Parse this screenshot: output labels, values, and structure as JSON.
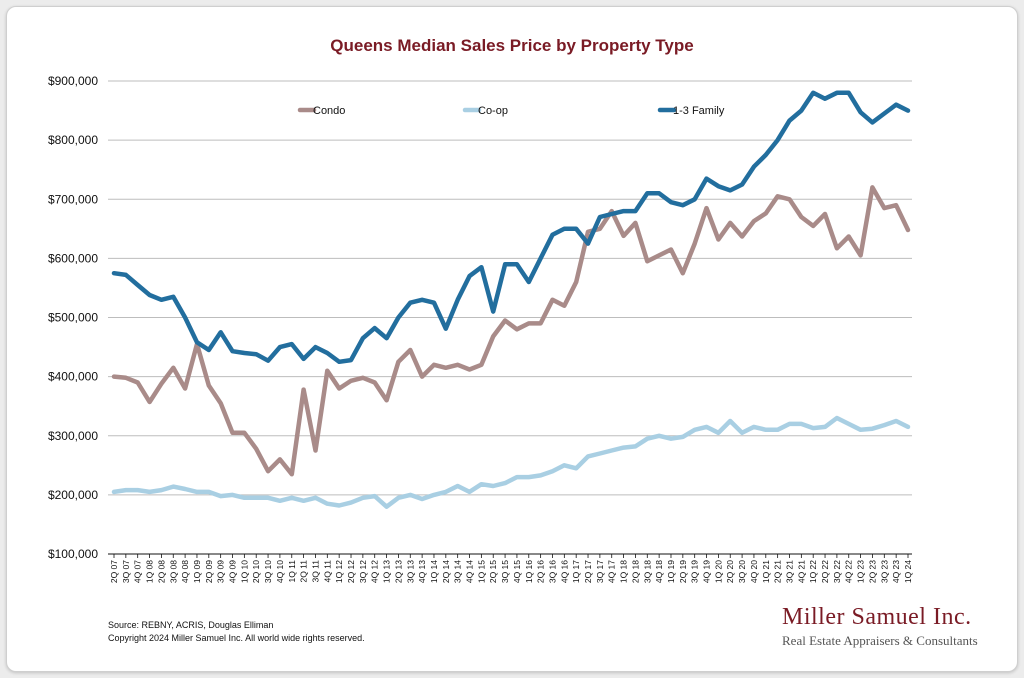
{
  "colors": {
    "title": "#7a1b25",
    "axis": "#111111",
    "grid": "#bdbdbd",
    "logo_name": "#7a1b25",
    "logo_tag": "#555555"
  },
  "footer": {
    "source": "Source: REBNY, ACRIS, Douglas Elliman",
    "copyright": "Copyright 2024 Miller Samuel Inc.  All world wide rights reserved."
  },
  "logo": {
    "name": "Miller Samuel Inc.",
    "tagline": "Real Estate Appraisers & Consultants"
  },
  "chart_data": {
    "type": "line",
    "title": "Queens Median Sales Price by Property Type",
    "xlabel": "",
    "ylabel": "",
    "ylim": [
      100000,
      900000
    ],
    "yticks": [
      100000,
      200000,
      300000,
      400000,
      500000,
      600000,
      700000,
      800000,
      900000
    ],
    "ytick_labels": [
      "$100,000",
      "$200,000",
      "$300,000",
      "$400,000",
      "$500,000",
      "$600,000",
      "$700,000",
      "$800,000",
      "$900,000"
    ],
    "grid": true,
    "legend_placement": "top",
    "categories": [
      "2Q 07",
      "3Q 07",
      "4Q 07",
      "1Q 08",
      "2Q 08",
      "3Q 08",
      "4Q 08",
      "1Q 09",
      "2Q 09",
      "3Q 09",
      "4Q 09",
      "1Q 10",
      "2Q 10",
      "3Q 10",
      "4Q 10",
      "1Q 11",
      "2Q 11",
      "3Q 11",
      "4Q 11",
      "1Q 12",
      "2Q 12",
      "3Q 12",
      "4Q 12",
      "1Q 13",
      "2Q 13",
      "3Q 13",
      "4Q 13",
      "1Q 14",
      "2Q 14",
      "3Q 14",
      "4Q 14",
      "1Q 15",
      "2Q 15",
      "3Q 15",
      "4Q 15",
      "1Q 16",
      "2Q 16",
      "3Q 16",
      "4Q 16",
      "1Q 17",
      "2Q 17",
      "3Q 17",
      "4Q 17",
      "1Q 18",
      "2Q 18",
      "3Q 18",
      "4Q 18",
      "1Q 19",
      "2Q 19",
      "3Q 19",
      "4Q 19",
      "1Q 20",
      "2Q 20",
      "3Q 20",
      "4Q 20",
      "1Q 21",
      "2Q 21",
      "3Q 21",
      "4Q 21",
      "1Q 22",
      "2Q 22",
      "3Q 22",
      "4Q 22",
      "1Q 23",
      "2Q 23",
      "3Q 23",
      "4Q 23",
      "1Q 24"
    ],
    "series": [
      {
        "name": "Condo",
        "color": "#a98b89",
        "values": [
          400000,
          398000,
          390000,
          357000,
          388000,
          415000,
          380000,
          455000,
          385000,
          355000,
          305000,
          305000,
          278000,
          240000,
          260000,
          235000,
          378000,
          275000,
          410000,
          380000,
          393000,
          398000,
          390000,
          360000,
          425000,
          445000,
          400000,
          420000,
          415000,
          420000,
          412000,
          420000,
          468000,
          495000,
          480000,
          490000,
          490000,
          530000,
          520000,
          560000,
          645000,
          650000,
          680000,
          638000,
          660000,
          595000,
          605000,
          615000,
          575000,
          625000,
          685000,
          632000,
          660000,
          637000,
          663000,
          676000,
          705000,
          700000,
          670000,
          655000,
          675000,
          617000,
          637000,
          605000,
          720000,
          685000,
          690000,
          648000
        ]
      },
      {
        "name": "Co-op",
        "color": "#a9cfe3",
        "values": [
          205000,
          208000,
          208000,
          205000,
          208000,
          214000,
          210000,
          205000,
          205000,
          198000,
          200000,
          195000,
          195000,
          195000,
          190000,
          195000,
          190000,
          195000,
          185000,
          182000,
          187000,
          195000,
          198000,
          180000,
          195000,
          200000,
          193000,
          200000,
          205000,
          215000,
          205000,
          218000,
          215000,
          220000,
          230000,
          230000,
          233000,
          240000,
          250000,
          245000,
          265000,
          270000,
          275000,
          280000,
          282000,
          295000,
          300000,
          295000,
          298000,
          310000,
          315000,
          305000,
          325000,
          305000,
          315000,
          310000,
          310000,
          320000,
          320000,
          313000,
          315000,
          330000,
          320000,
          310000,
          312000,
          318000,
          325000,
          315000
        ]
      },
      {
        "name": "1-3 Family",
        "color": "#226e9e",
        "values": [
          575000,
          572000,
          555000,
          538000,
          530000,
          535000,
          500000,
          458000,
          445000,
          475000,
          443000,
          440000,
          438000,
          427000,
          450000,
          455000,
          430000,
          450000,
          440000,
          425000,
          428000,
          465000,
          482000,
          465000,
          500000,
          525000,
          530000,
          525000,
          481000,
          530000,
          570000,
          585000,
          510000,
          590000,
          590000,
          560000,
          600000,
          640000,
          650000,
          650000,
          625000,
          670000,
          675000,
          680000,
          680000,
          710000,
          710000,
          695000,
          690000,
          700000,
          735000,
          722000,
          715000,
          725000,
          755000,
          775000,
          800000,
          833000,
          850000,
          880000,
          870000,
          880000,
          880000,
          847000,
          830000,
          845000,
          860000,
          850000
        ]
      }
    ]
  }
}
